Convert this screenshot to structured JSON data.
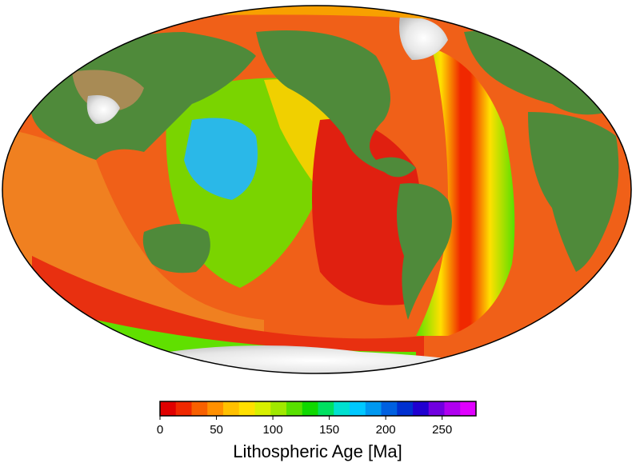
{
  "map": {
    "projection": "Winkel-like world ellipse, Pacific-centred",
    "land_color": "#4f8a3a",
    "highland_color": "#a88b55",
    "ice_color": "#f2f2f2",
    "continental_shelf_color": "#b4b4b4",
    "ocean_age_palette": "rainbow red-to-magenta"
  },
  "colorbar": {
    "label": "Lithospheric Age [Ma]",
    "ticks": [
      "0",
      "50",
      "100",
      "150",
      "200",
      "250"
    ],
    "tick_values": [
      0,
      50,
      100,
      150,
      200,
      250
    ],
    "range": [
      0,
      280
    ],
    "segments": [
      "#e00000",
      "#f02800",
      "#f86000",
      "#ff9000",
      "#ffc000",
      "#ffe000",
      "#d8f000",
      "#a0e800",
      "#58e000",
      "#10d800",
      "#00e060",
      "#00e0d0",
      "#00c8ff",
      "#0098f0",
      "#0060e0",
      "#0030d0",
      "#2000d0",
      "#7000e0",
      "#b000f0",
      "#e000ff"
    ]
  }
}
